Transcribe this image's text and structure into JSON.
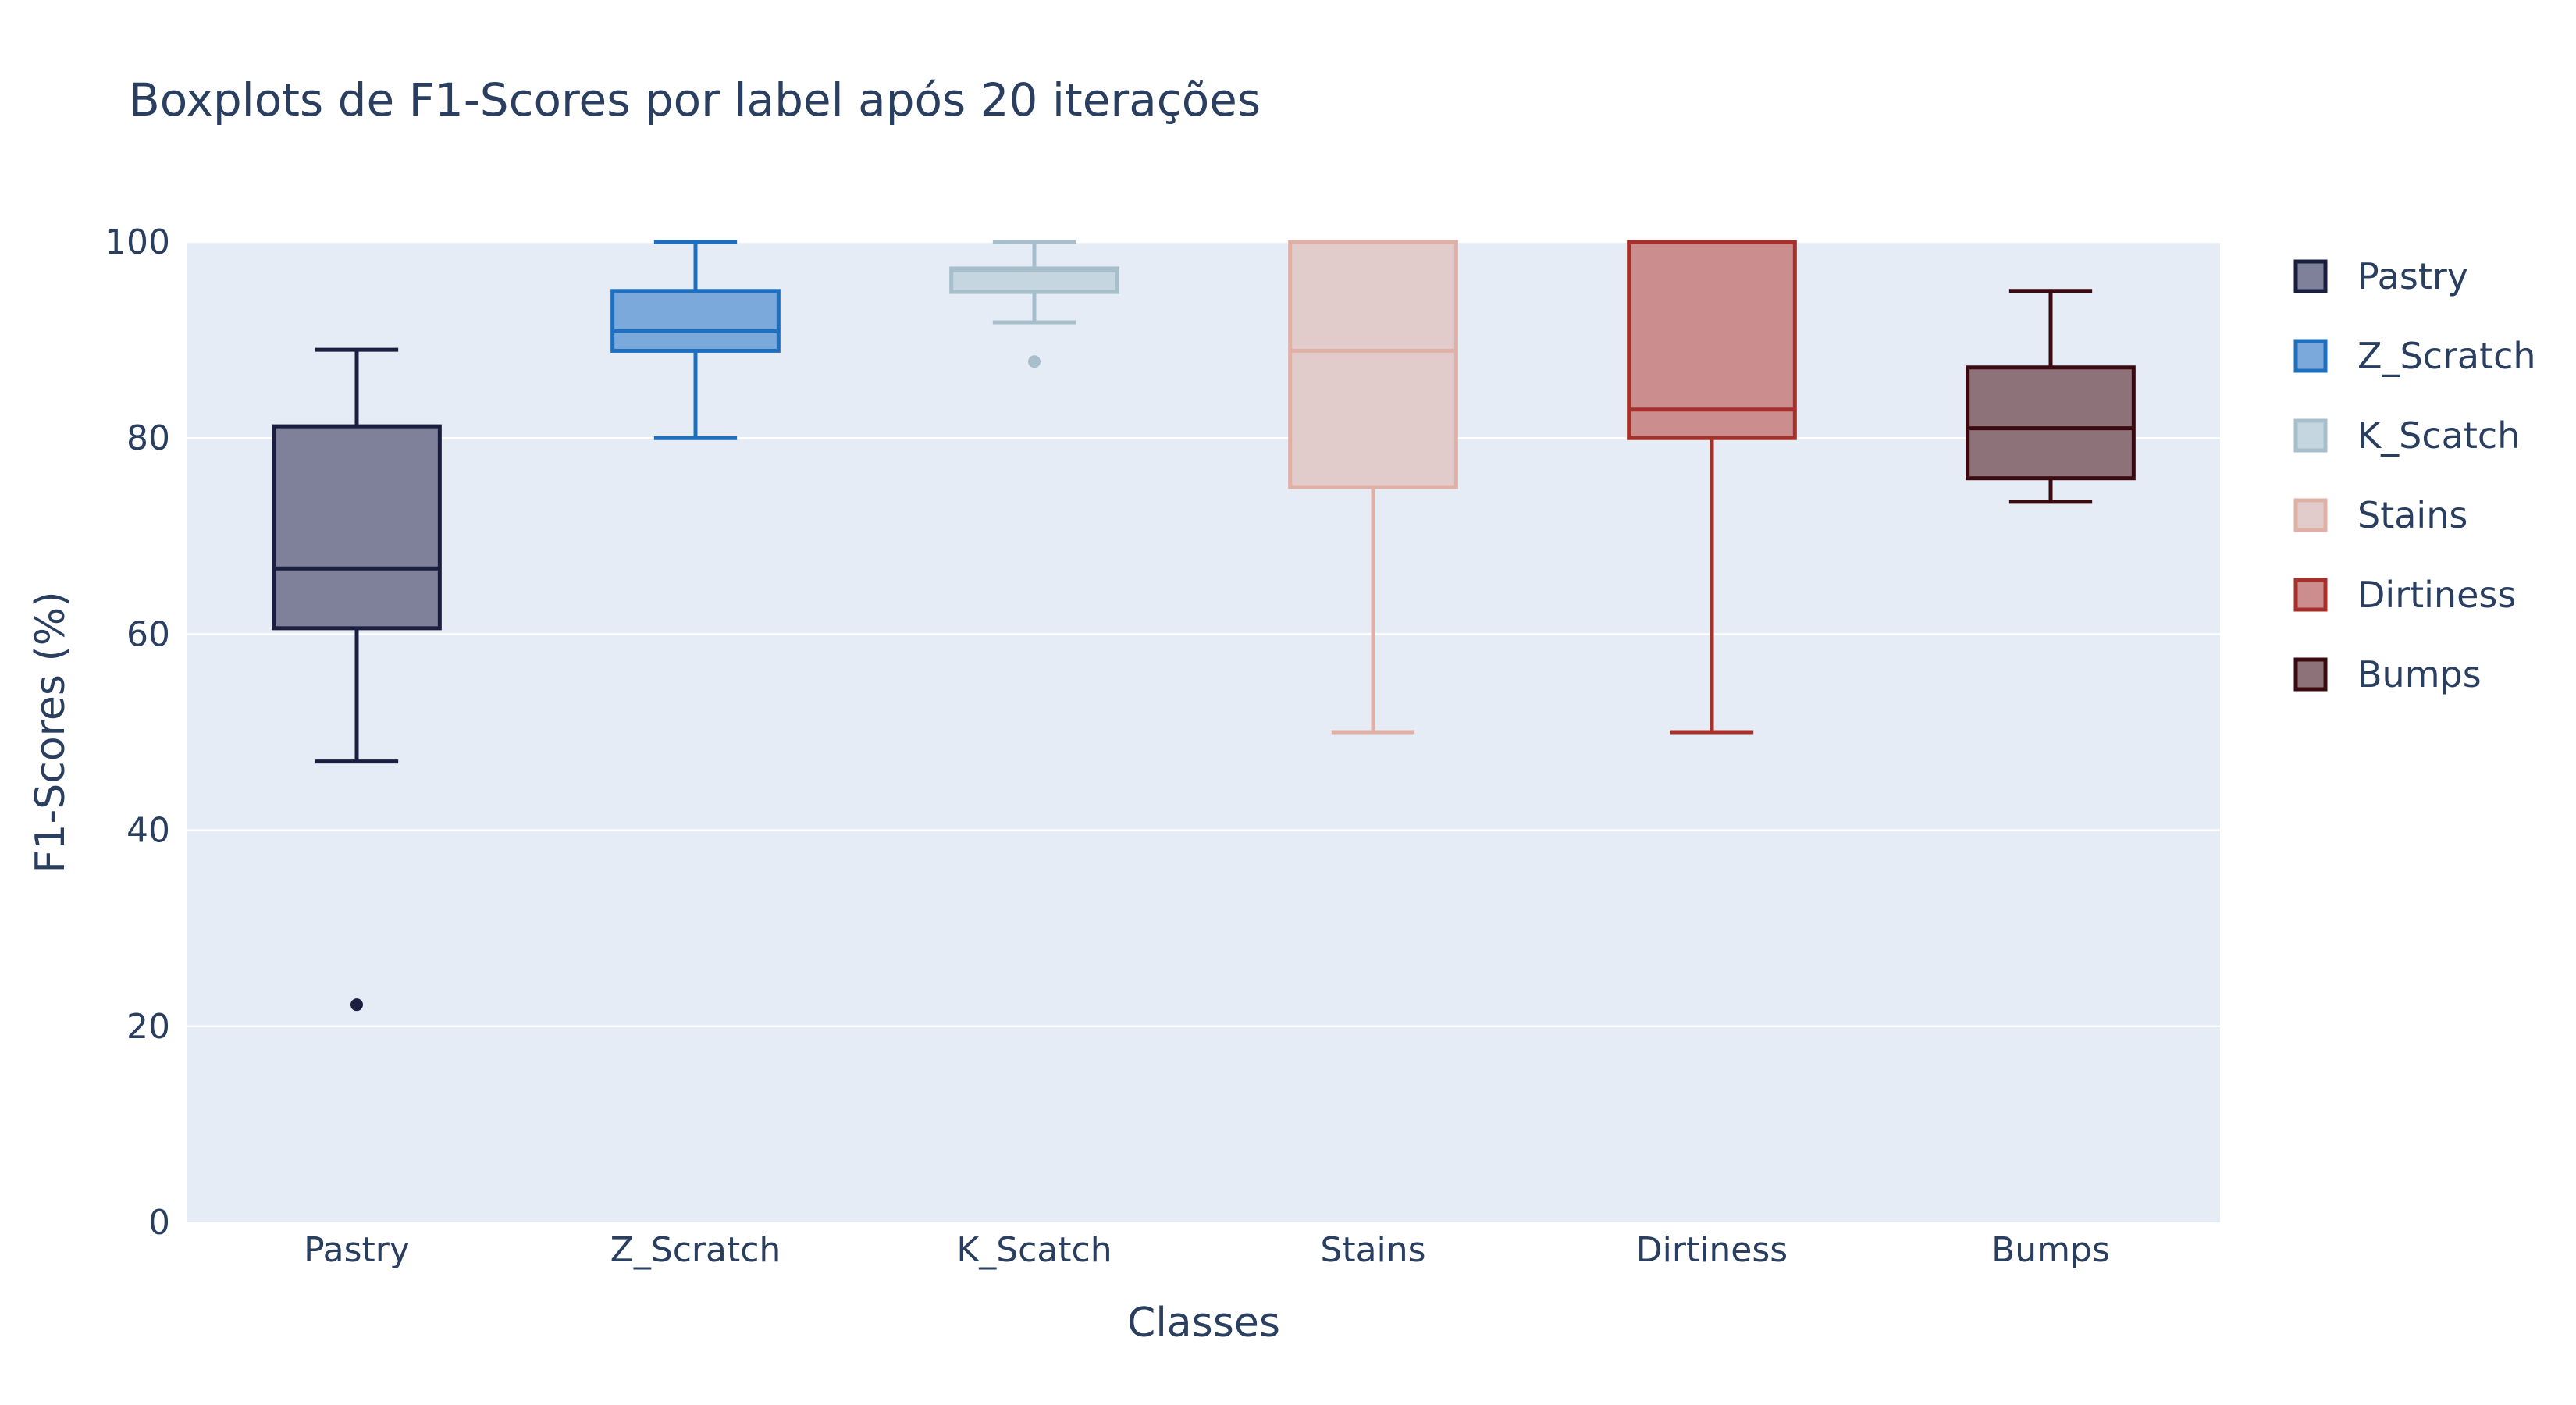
{
  "chart_data": {
    "type": "box",
    "title": "Boxplots de F1-Scores por label após 20 iterações",
    "xlabel": "Classes",
    "ylabel": "F1-Scores (%)",
    "ylim": [
      0,
      100
    ],
    "yticks": [
      "0",
      "20",
      "40",
      "60",
      "80",
      "100"
    ],
    "categories": [
      "Pastry",
      "Z_Scratch",
      "K_Scatch",
      "Stains",
      "Dirtiness",
      "Bumps"
    ],
    "grid": true,
    "legend_position": "right",
    "series": [
      {
        "name": "Pastry",
        "min": 47,
        "q1": 60.6,
        "median": 66.7,
        "q3": 81.2,
        "max": 89,
        "outliers": [
          22.2
        ],
        "color": "#1a1f40",
        "fill": "#7e8199"
      },
      {
        "name": "Z_Scratch",
        "min": 80,
        "q1": 88.9,
        "median": 90.9,
        "q3": 95,
        "max": 100,
        "outliers": [],
        "color": "#1f6fbf",
        "fill": "#7ca9dc"
      },
      {
        "name": "K_Scatch",
        "min": 91.8,
        "q1": 94.9,
        "median": 97.1,
        "q3": 97.3,
        "max": 100,
        "outliers": [
          87.8
        ],
        "color": "#a6bfcb",
        "fill": "#c6d6e0"
      },
      {
        "name": "Stains",
        "min": 50,
        "q1": 75,
        "median": 88.9,
        "q3": 100,
        "max": 100,
        "outliers": [],
        "color": "#e0b0a6",
        "fill": "#e2cbcb"
      },
      {
        "name": "Dirtiness",
        "min": 50,
        "q1": 80,
        "median": 82.9,
        "q3": 100,
        "max": 100,
        "outliers": [],
        "color": "#a8302a",
        "fill": "#cb8d8e"
      },
      {
        "name": "Bumps",
        "min": 73.5,
        "q1": 75.9,
        "median": 81,
        "q3": 87.2,
        "max": 95,
        "outliers": [],
        "color": "#3a0a10",
        "fill": "#8e727a"
      }
    ]
  }
}
